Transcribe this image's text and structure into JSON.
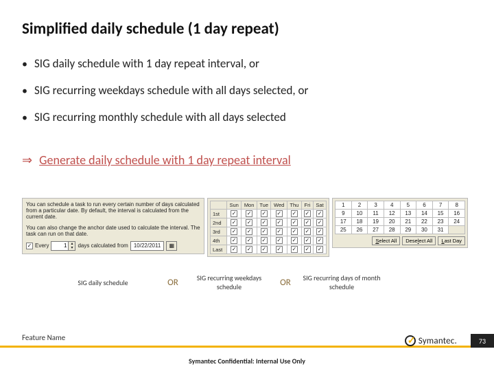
{
  "title": "Simplified daily schedule (1 day repeat)",
  "bullets": [
    "SIG daily schedule with 1 day repeat interval, or",
    "SIG recurring weekdays schedule with all days selected, or",
    "SIG recurring monthly schedule with all days selected"
  ],
  "result": {
    "arrow": "⇒",
    "text": "Generate daily schedule with 1 day repeat interval"
  },
  "panelA": {
    "p1": "You can schedule a task to run every certain number of days calculated from a particular date. By default, the interval is calculated from the current date.",
    "p2": "You can also change the anchor date used to calculate the interval. The task can run on that date.",
    "everyLabel": "Every",
    "everyVal": "1",
    "midLabel": "days calculated from",
    "date": "10/22/2011"
  },
  "panelB": {
    "days": [
      "Sun",
      "Mon",
      "Tue",
      "Wed",
      "Thu",
      "Fri",
      "Sat"
    ],
    "rows": [
      "1st",
      "2nd",
      "3rd",
      "4th",
      "Last"
    ]
  },
  "panelC": {
    "btn1": "Select All",
    "btn2": "Deselect All",
    "btn3": "Last Day"
  },
  "captions": {
    "a": "SIG daily schedule",
    "or": "OR",
    "b": "SIG recurring weekdays schedule",
    "c": "SIG recurring days of month schedule"
  },
  "footer": {
    "feature": "Feature Name",
    "brand": "Symantec.",
    "page": "73",
    "conf": "Symantec Confidential:  Internal Use Only"
  },
  "colors": {
    "accent": "#f3b200",
    "resultColor": "#c0504d",
    "panelBg": "#ece9d8"
  }
}
